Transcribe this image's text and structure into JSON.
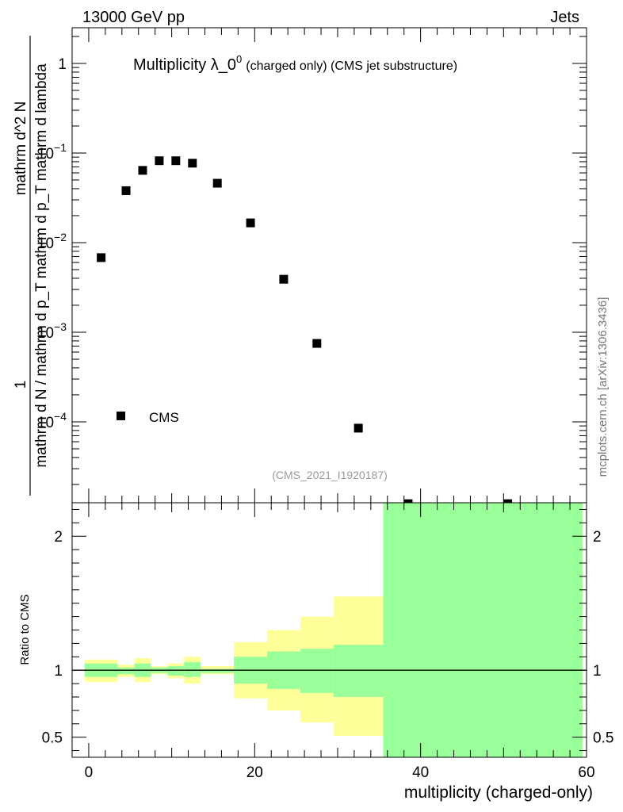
{
  "header": {
    "left": "13000 GeV pp",
    "right": "Jets"
  },
  "side_label": "mcplots.cern.ch [arXiv:1306.3436]",
  "chart_data": [
    {
      "type": "scatter",
      "title_main": "Multiplicity λ_0",
      "title_sup": "0",
      "title_sub": "(charged only) (CMS jet substructure)",
      "analysis_label": "(CMS_2021_I1920187)",
      "ylabel_num": "1",
      "ylabel_den": "mathrm d N / mathrm d p_T mathrm d p_T mathrm d lambda",
      "ylabel_over": "mathrm d^2 N",
      "yscale": "log",
      "xlim": [
        -2,
        60
      ],
      "ylim": [
        1.25e-05,
        2.5
      ],
      "y_ticks": [
        {
          "value": 1,
          "label": "1"
        },
        {
          "value": 0.1,
          "base": "10",
          "exp": "−1"
        },
        {
          "value": 0.01,
          "base": "10",
          "exp": "−2"
        },
        {
          "value": 0.001,
          "base": "10",
          "exp": "−3"
        },
        {
          "value": 0.0001,
          "base": "10",
          "exp": "−4"
        }
      ],
      "legend": [
        {
          "name": "CMS",
          "marker": "square",
          "placement": "lower-left"
        }
      ],
      "series": [
        {
          "name": "CMS",
          "x": [
            1.5,
            4.5,
            6.5,
            8.5,
            10.5,
            12.5,
            15.5,
            19.5,
            23.5,
            27.5,
            32.5,
            38.5,
            50.5
          ],
          "y": [
            0.0068,
            0.038,
            0.064,
            0.082,
            0.082,
            0.077,
            0.046,
            0.0166,
            0.0039,
            0.00075,
            8.5e-05,
            1.22e-05,
            1.22e-05
          ]
        }
      ]
    },
    {
      "type": "area",
      "ylabel": "Ratio to CMS",
      "xlabel": "multiplicity (charged-only)",
      "xlim": [
        -2,
        60
      ],
      "ylim": [
        0.35,
        2.25
      ],
      "x_ticks": [
        0,
        20,
        40,
        60
      ],
      "y_ticks": [
        0.5,
        1,
        2
      ],
      "reference_line": 1,
      "bands": [
        {
          "x0": -0.5,
          "x1": 3.5,
          "green": [
            0.95,
            1.05
          ],
          "yellow": [
            0.91,
            1.08
          ]
        },
        {
          "x0": 3.5,
          "x1": 5.5,
          "green": [
            0.97,
            1.02
          ],
          "yellow": [
            0.95,
            1.04
          ]
        },
        {
          "x0": 5.5,
          "x1": 7.5,
          "green": [
            0.95,
            1.05
          ],
          "yellow": [
            0.91,
            1.09
          ]
        },
        {
          "x0": 7.5,
          "x1": 9.5,
          "green": [
            0.98,
            1.02
          ],
          "yellow": [
            0.97,
            1.03
          ]
        },
        {
          "x0": 9.5,
          "x1": 11.5,
          "green": [
            0.96,
            1.03
          ],
          "yellow": [
            0.94,
            1.05
          ]
        },
        {
          "x0": 11.5,
          "x1": 13.5,
          "green": [
            0.95,
            1.06
          ],
          "yellow": [
            0.9,
            1.1
          ]
        },
        {
          "x0": 13.5,
          "x1": 17.5,
          "green": [
            0.98,
            1.01
          ],
          "yellow": [
            0.97,
            1.03
          ]
        },
        {
          "x0": 17.5,
          "x1": 21.5,
          "green": [
            0.9,
            1.1
          ],
          "yellow": [
            0.79,
            1.21
          ]
        },
        {
          "x0": 21.5,
          "x1": 25.5,
          "green": [
            0.86,
            1.14
          ],
          "yellow": [
            0.7,
            1.3
          ]
        },
        {
          "x0": 25.5,
          "x1": 29.5,
          "green": [
            0.83,
            1.16
          ],
          "yellow": [
            0.61,
            1.4
          ]
        },
        {
          "x0": 29.5,
          "x1": 35.5,
          "green": [
            0.8,
            1.19
          ],
          "yellow": [
            0.51,
            1.55
          ]
        },
        {
          "x0": 35.5,
          "x1": 59.5,
          "green": [
            0.35,
            2.25
          ],
          "yellow": [
            0.35,
            2.25
          ]
        }
      ]
    }
  ],
  "colors": {
    "green": "#99ff99",
    "yellow": "#ffff99",
    "marker": "#000000"
  }
}
